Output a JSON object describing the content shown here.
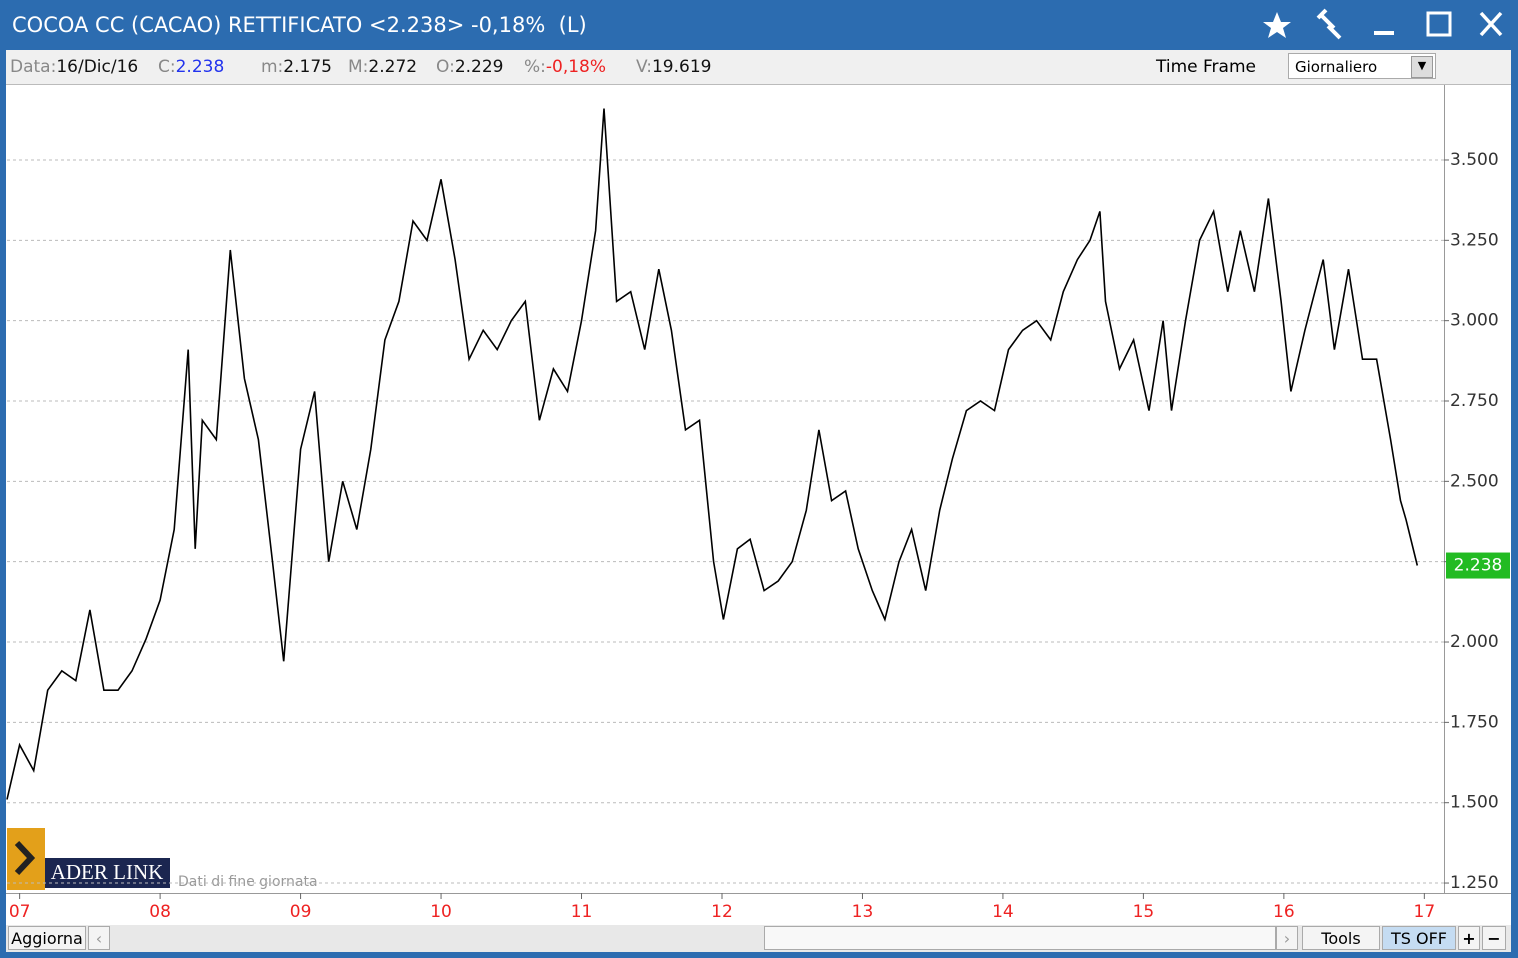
{
  "window": {
    "title": "COCOA CC (CACAO) RETTIFICATO <2.238> -0,18%  (L)"
  },
  "info_bar": {
    "fields": [
      {
        "label": "Data:",
        "value": "16/Dic/16"
      },
      {
        "label": "C:",
        "value": "2.238"
      },
      {
        "label": "m:",
        "value": "2.175"
      },
      {
        "label": "M:",
        "value": "2.272"
      },
      {
        "label": "O:",
        "value": "2.229"
      },
      {
        "label": "%:",
        "value": "-0,18%"
      },
      {
        "label": "V:",
        "value": "19.619"
      }
    ],
    "time_frame_label": "Time Frame",
    "time_frame_value": "Giornaliero"
  },
  "watermark": {
    "logo": "ADER LINK",
    "note": "Dati di fine giornata"
  },
  "footer": {
    "refresh": "Aggiorna",
    "tools": "Tools",
    "ts": "TS OFF",
    "plus": "+",
    "minus": "−"
  },
  "chart_data": {
    "type": "line",
    "grid": true,
    "x": [
      2006.91,
      2007.0,
      2007.1,
      2007.2,
      2007.3,
      2007.4,
      2007.5,
      2007.6,
      2007.7,
      2007.8,
      2007.9,
      2008.0,
      2008.1,
      2008.2,
      2008.25,
      2008.3,
      2008.4,
      2008.5,
      2008.6,
      2008.7,
      2008.8,
      2008.88,
      2009.0,
      2009.1,
      2009.2,
      2009.3,
      2009.4,
      2009.5,
      2009.6,
      2009.7,
      2009.8,
      2009.9,
      2010.0,
      2010.1,
      2010.2,
      2010.3,
      2010.4,
      2010.5,
      2010.6,
      2010.7,
      2010.8,
      2010.9,
      2011.0,
      2011.1,
      2011.16,
      2011.25,
      2011.35,
      2011.45,
      2011.55,
      2011.64,
      2011.74,
      2011.84,
      2011.94,
      2012.01,
      2012.11,
      2012.2,
      2012.3,
      2012.4,
      2012.5,
      2012.6,
      2012.69,
      2012.78,
      2012.88,
      2012.97,
      2013.07,
      2013.16,
      2013.26,
      2013.35,
      2013.45,
      2013.55,
      2013.64,
      2013.74,
      2013.84,
      2013.94,
      2014.04,
      2014.14,
      2014.24,
      2014.34,
      2014.43,
      2014.53,
      2014.62,
      2014.69,
      2014.73,
      2014.83,
      2014.93,
      2015.04,
      2015.14,
      2015.2,
      2015.3,
      2015.4,
      2015.5,
      2015.6,
      2015.69,
      2015.79,
      2015.89,
      2015.98,
      2016.05,
      2016.15,
      2016.28,
      2016.36,
      2016.46,
      2016.56,
      2016.66,
      2016.76,
      2016.83,
      2016.87,
      2016.95
    ],
    "series": [
      {
        "color": "#000000",
        "values": [
          1.51,
          1.68,
          1.6,
          1.85,
          1.91,
          1.88,
          2.1,
          1.85,
          1.85,
          1.91,
          2.01,
          2.13,
          2.35,
          2.91,
          2.29,
          2.69,
          2.63,
          3.22,
          2.82,
          2.63,
          2.25,
          1.94,
          2.6,
          2.78,
          2.25,
          2.5,
          2.35,
          2.6,
          2.94,
          3.06,
          3.31,
          3.25,
          3.44,
          3.19,
          2.88,
          2.97,
          2.91,
          3.0,
          3.06,
          2.69,
          2.85,
          2.78,
          3.0,
          3.28,
          3.66,
          3.06,
          3.09,
          2.91,
          3.16,
          2.97,
          2.66,
          2.69,
          2.25,
          2.07,
          2.29,
          2.32,
          2.16,
          2.19,
          2.25,
          2.41,
          2.66,
          2.44,
          2.47,
          2.29,
          2.16,
          2.07,
          2.25,
          2.35,
          2.16,
          2.41,
          2.57,
          2.72,
          2.75,
          2.72,
          2.91,
          2.97,
          3.0,
          2.94,
          3.09,
          3.19,
          3.25,
          3.34,
          3.06,
          2.85,
          2.94,
          2.72,
          3.0,
          2.72,
          3.0,
          3.25,
          3.34,
          3.09,
          3.28,
          3.09,
          3.38,
          3.06,
          2.78,
          2.97,
          3.19,
          2.91,
          3.16,
          2.88,
          2.88,
          2.63,
          2.44,
          2.38,
          2.238
        ]
      }
    ],
    "last_value_color": "#22bb22",
    "xlim": [
      2006.91,
      2017.14
    ],
    "xticks": [
      {
        "value": 2007,
        "label": "07"
      },
      {
        "value": 2008,
        "label": "08"
      },
      {
        "value": 2009,
        "label": "09"
      },
      {
        "value": 2010,
        "label": "10"
      },
      {
        "value": 2011,
        "label": "11"
      },
      {
        "value": 2012,
        "label": "12"
      },
      {
        "value": 2013,
        "label": "13"
      },
      {
        "value": 2014,
        "label": "14"
      },
      {
        "value": 2015,
        "label": "15"
      },
      {
        "value": 2016,
        "label": "16"
      },
      {
        "value": 2017,
        "label": "17"
      }
    ],
    "ylim": [
      1.219,
      3.724
    ],
    "yticks": [
      {
        "value": 1.25,
        "label": "1.250"
      },
      {
        "value": 1.5,
        "label": "1.500"
      },
      {
        "value": 1.75,
        "label": "1.750"
      },
      {
        "value": 2,
        "label": "2.000"
      },
      {
        "value": 2.25,
        "label": "2.250"
      },
      {
        "value": 2.5,
        "label": "2.500"
      },
      {
        "value": 2.75,
        "label": "2.750"
      },
      {
        "value": 3,
        "label": "3.000"
      },
      {
        "value": 3.25,
        "label": "3.250"
      },
      {
        "value": 3.5,
        "label": "3.500"
      }
    ]
  }
}
